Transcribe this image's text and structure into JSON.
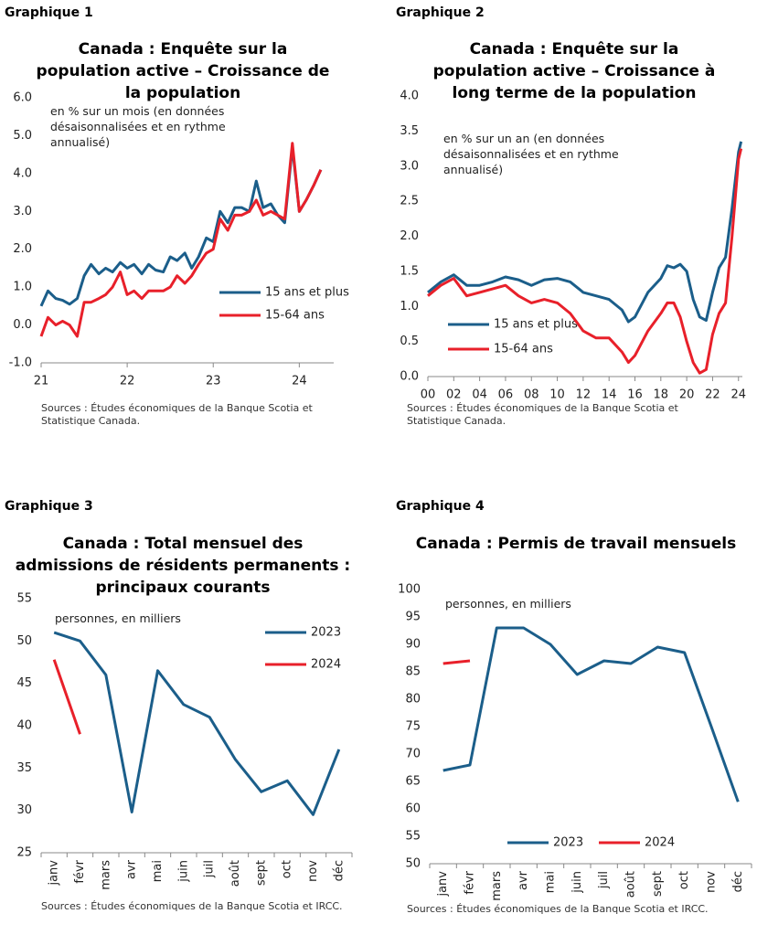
{
  "chart_data": [
    {
      "type": "line",
      "label": "Graphique 1",
      "title": "Canada : Enquête sur la population active – Croissance de la population",
      "subtitle": "en % sur un mois (en données désaisonnalisées et en rythme annualisé)",
      "source": "Sources : Études économiques de la Banque Scotia et Statistique Canada.",
      "x": [
        21,
        21.08,
        21.17,
        21.25,
        21.33,
        21.42,
        21.5,
        21.58,
        21.67,
        21.75,
        21.83,
        21.92,
        22,
        22.08,
        22.17,
        22.25,
        22.33,
        22.42,
        22.5,
        22.58,
        22.67,
        22.75,
        22.83,
        22.92,
        23,
        23.08,
        23.17,
        23.25,
        23.33,
        23.42,
        23.5,
        23.58,
        23.67,
        23.75,
        23.83,
        23.92,
        24,
        24.08,
        24.17,
        24.25
      ],
      "series": [
        {
          "name": "15 ans et plus",
          "color": "#1b5e8a",
          "values": [
            0.5,
            0.9,
            0.7,
            0.65,
            0.55,
            0.7,
            1.3,
            1.6,
            1.35,
            1.5,
            1.4,
            1.65,
            1.5,
            1.6,
            1.35,
            1.6,
            1.45,
            1.4,
            1.8,
            1.7,
            1.9,
            1.5,
            1.8,
            2.3,
            2.2,
            3.0,
            2.7,
            3.1,
            3.1,
            3.0,
            3.8,
            3.1,
            3.2,
            2.9,
            2.7,
            4.7,
            3.0,
            3.3,
            3.7,
            4.1
          ]
        },
        {
          "name": "15-64 ans",
          "color": "#e8202a",
          "values": [
            -0.3,
            0.2,
            0.0,
            0.1,
            0.0,
            -0.3,
            0.6,
            0.6,
            0.7,
            0.8,
            1.0,
            1.4,
            0.8,
            0.9,
            0.7,
            0.9,
            0.9,
            0.9,
            1.0,
            1.3,
            1.1,
            1.3,
            1.6,
            1.9,
            2.0,
            2.8,
            2.5,
            2.9,
            2.9,
            3.0,
            3.3,
            2.9,
            3.0,
            2.9,
            2.8,
            4.8,
            3.0,
            3.3,
            3.7,
            4.1
          ]
        }
      ],
      "xlim": [
        21,
        24.4
      ],
      "xticks": [
        21,
        22,
        23,
        24
      ],
      "ylim": [
        -1,
        6
      ],
      "yticks": [
        {
          "value": -1,
          "label": "-1.0"
        },
        {
          "value": 0,
          "label": "0.0"
        },
        {
          "value": 1,
          "label": "1.0"
        },
        {
          "value": 2,
          "label": "2.0"
        },
        {
          "value": 3,
          "label": "3.0"
        },
        {
          "value": 4,
          "label": "4.0"
        },
        {
          "value": 5,
          "label": "5.0"
        },
        {
          "value": 6,
          "label": "6.0"
        }
      ],
      "grid": false,
      "legend": "lower right"
    },
    {
      "type": "line",
      "label": "Graphique 2",
      "title": "Canada : Enquête sur la population active – Croissance à long terme de la population",
      "subtitle": "en % sur un an (en données désaisonnalisées et en rythme annualisé)",
      "source": "Sources : Études économiques de la Banque Scotia et Statistique Canada.",
      "x": [
        0,
        1,
        2,
        3,
        4,
        5,
        6,
        7,
        8,
        9,
        10,
        11,
        12,
        13,
        14,
        15,
        15.5,
        16,
        17,
        18,
        18.5,
        19,
        19.5,
        20,
        20.5,
        21,
        21.5,
        22,
        22.5,
        23,
        23.5,
        24,
        24.2
      ],
      "series": [
        {
          "name": "15 ans et plus",
          "color": "#1b5e8a",
          "values": [
            1.2,
            1.35,
            1.45,
            1.3,
            1.3,
            1.35,
            1.42,
            1.38,
            1.3,
            1.38,
            1.4,
            1.35,
            1.2,
            1.15,
            1.1,
            0.95,
            0.78,
            0.85,
            1.2,
            1.4,
            1.58,
            1.55,
            1.6,
            1.5,
            1.1,
            0.85,
            0.8,
            1.2,
            1.55,
            1.7,
            2.4,
            3.2,
            3.35
          ]
        },
        {
          "name": "15-64 ans",
          "color": "#e8202a",
          "values": [
            1.15,
            1.3,
            1.4,
            1.15,
            1.2,
            1.25,
            1.3,
            1.15,
            1.05,
            1.1,
            1.05,
            0.9,
            0.65,
            0.55,
            0.55,
            0.35,
            0.2,
            0.3,
            0.65,
            0.9,
            1.05,
            1.05,
            0.85,
            0.5,
            0.2,
            0.05,
            0.1,
            0.6,
            0.9,
            1.05,
            2.0,
            3.1,
            3.25
          ]
        }
      ],
      "xlim": [
        0,
        24.3
      ],
      "xticks": [
        {
          "value": 0,
          "label": "00"
        },
        {
          "value": 2,
          "label": "02"
        },
        {
          "value": 4,
          "label": "04"
        },
        {
          "value": 6,
          "label": "06"
        },
        {
          "value": 8,
          "label": "08"
        },
        10,
        12,
        14,
        16,
        18,
        20,
        22,
        24
      ],
      "ylim": [
        0,
        4
      ],
      "yticks": [
        {
          "value": 0,
          "label": "0.0"
        },
        {
          "value": 0.5,
          "label": "0.5"
        },
        {
          "value": 1,
          "label": "1.0"
        },
        {
          "value": 1.5,
          "label": "1.5"
        },
        {
          "value": 2,
          "label": "2.0"
        },
        {
          "value": 2.5,
          "label": "2.5"
        },
        {
          "value": 3,
          "label": "3.0"
        },
        {
          "value": 3.5,
          "label": "3.5"
        },
        {
          "value": 4,
          "label": "4.0"
        }
      ],
      "grid": false,
      "legend": "lower left"
    },
    {
      "type": "line",
      "label": "Graphique 3",
      "title": "Canada : Total mensuel des admissions de résidents permanents : principaux courants",
      "subtitle": "personnes, en milliers",
      "source": "Sources : Études économiques de la Banque Scotia et IRCC.",
      "categories": [
        "janv",
        "févr",
        "mars",
        "avr",
        "mai",
        "juin",
        "juil",
        "août",
        "sept",
        "oct",
        "nov",
        "déc"
      ],
      "series": [
        {
          "name": "2023",
          "color": "#1b5e8a",
          "values": [
            51,
            50,
            46,
            29.8,
            46.5,
            42.5,
            41,
            36,
            32.2,
            33.5,
            29.5,
            37.2
          ]
        },
        {
          "name": "2024",
          "color": "#e8202a",
          "values": [
            47.8,
            39,
            null,
            null,
            null,
            null,
            null,
            null,
            null,
            null,
            null,
            null
          ]
        }
      ],
      "ylim": [
        25,
        55
      ],
      "yticks": [
        25,
        30,
        35,
        40,
        45,
        50,
        55
      ],
      "grid": false,
      "legend": "upper right"
    },
    {
      "type": "line",
      "label": "Graphique 4",
      "title": "Canada : Permis de travail mensuels",
      "subtitle": "personnes, en milliers",
      "source": "Sources : Études économiques de la Banque Scotia et IRCC.",
      "categories": [
        "janv",
        "févr",
        "mars",
        "avr",
        "mai",
        "juin",
        "juil",
        "août",
        "sept",
        "oct",
        "nov",
        "déc"
      ],
      "series": [
        {
          "name": "2023",
          "color": "#1b5e8a",
          "values": [
            67,
            68,
            93,
            93,
            90,
            84.5,
            87,
            86.5,
            89.5,
            88.5,
            75,
            61.3
          ]
        },
        {
          "name": "2024",
          "color": "#e8202a",
          "values": [
            86.5,
            87,
            null,
            null,
            null,
            null,
            null,
            null,
            null,
            null,
            null,
            null
          ]
        }
      ],
      "ylim": [
        50,
        100
      ],
      "yticks": [
        50,
        55,
        60,
        65,
        70,
        75,
        80,
        85,
        90,
        95,
        100
      ],
      "grid": false,
      "legend": "lower center"
    }
  ]
}
